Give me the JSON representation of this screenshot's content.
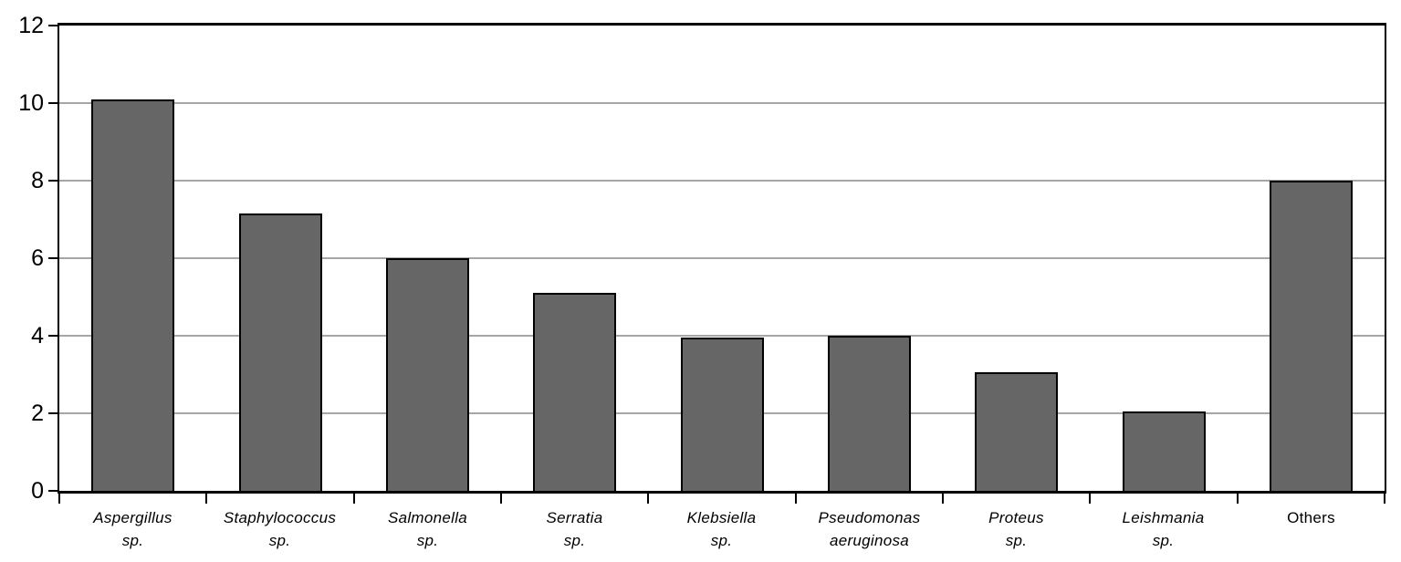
{
  "chart_data": {
    "type": "bar",
    "title": "",
    "xlabel": "",
    "ylabel": "",
    "categories": [
      "Aspergillus sp.",
      "Staphylococcus sp.",
      "Salmonella sp.",
      "Serratia sp.",
      "Klebsiella sp.",
      "Pseudomonas aeruginosa",
      "Proteus sp.",
      "Leishmania sp.",
      "Others"
    ],
    "values": [
      10.1,
      7.15,
      6,
      5.1,
      3.95,
      4.0,
      3.05,
      2.05,
      8
    ],
    "xtick_labels": [
      {
        "lines": [
          "Aspergillus",
          "sp."
        ],
        "italic": true
      },
      {
        "lines": [
          "Staphylococcus",
          "sp."
        ],
        "italic": true
      },
      {
        "lines": [
          "Salmonella",
          "sp."
        ],
        "italic": true
      },
      {
        "lines": [
          "Serratia",
          "sp."
        ],
        "italic": true
      },
      {
        "lines": [
          "Klebsiella",
          "sp."
        ],
        "italic": true
      },
      {
        "lines": [
          "Pseudomonas",
          "aeruginosa"
        ],
        "italic": true
      },
      {
        "lines": [
          "Proteus",
          "sp."
        ],
        "italic": true
      },
      {
        "lines": [
          "Leishmania",
          "sp."
        ],
        "italic": true
      },
      {
        "lines": [
          "Others"
        ],
        "italic": false
      }
    ],
    "ylim": [
      0,
      12
    ],
    "ytick_step": 2,
    "ytick_labels": [
      "0",
      "2",
      "4",
      "6",
      "8",
      "10",
      "12"
    ],
    "grid": true,
    "legend": false,
    "colors": {
      "bar_fill": "#666666",
      "bar_border": "#000000",
      "gridline": "#a6a6a6",
      "axis": "#000000",
      "text": "#000000",
      "background": "#ffffff"
    }
  }
}
